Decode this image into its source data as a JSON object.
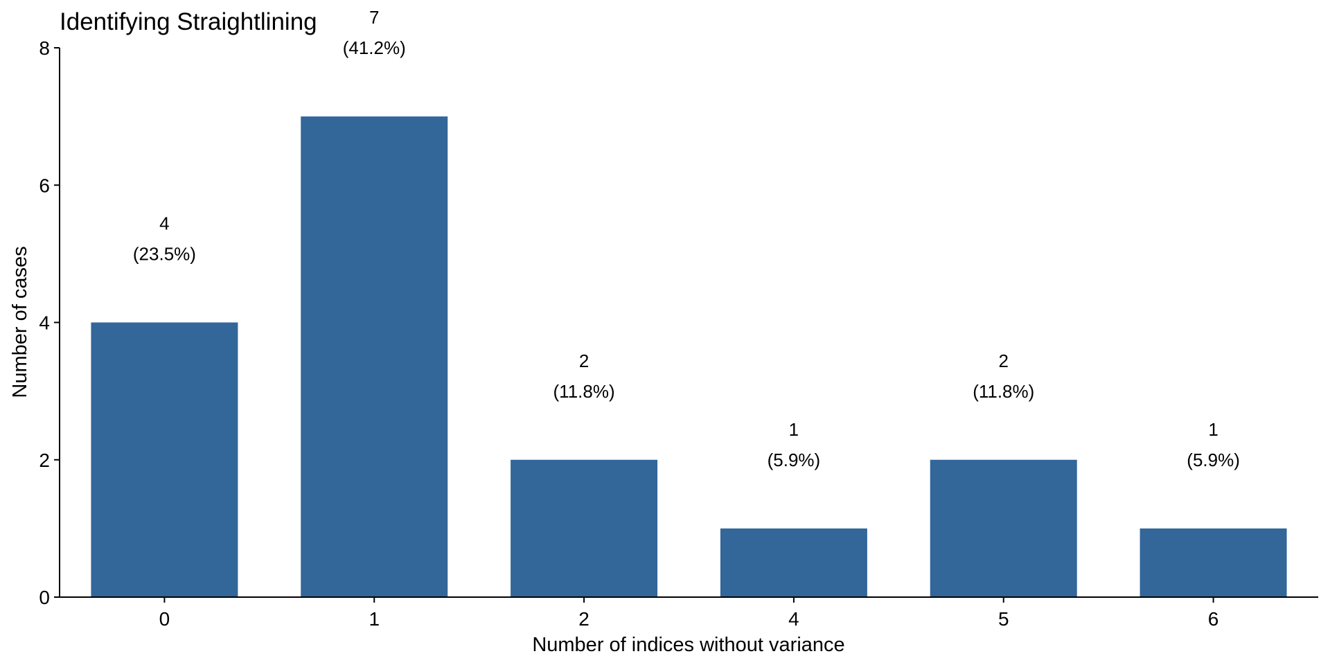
{
  "chart_data": {
    "type": "bar",
    "title": "Identifying Straightlining",
    "xlabel": "Number of indices without variance",
    "ylabel": "Number of cases",
    "categories": [
      "0",
      "1",
      "2",
      "4",
      "5",
      "6"
    ],
    "values": [
      4,
      7,
      2,
      1,
      2,
      1
    ],
    "labels": [
      [
        "4",
        "(23.5%)"
      ],
      [
        "7",
        "(41.2%)"
      ],
      [
        "2",
        "(11.8%)"
      ],
      [
        "1",
        "(5.9%)"
      ],
      [
        "2",
        "(11.8%)"
      ],
      [
        "1",
        "(5.9%)"
      ]
    ],
    "ylim": [
      0,
      8
    ],
    "yticks": [
      0,
      2,
      4,
      6,
      8
    ],
    "bar_color": "#336699",
    "grid": false,
    "legend": "none"
  }
}
